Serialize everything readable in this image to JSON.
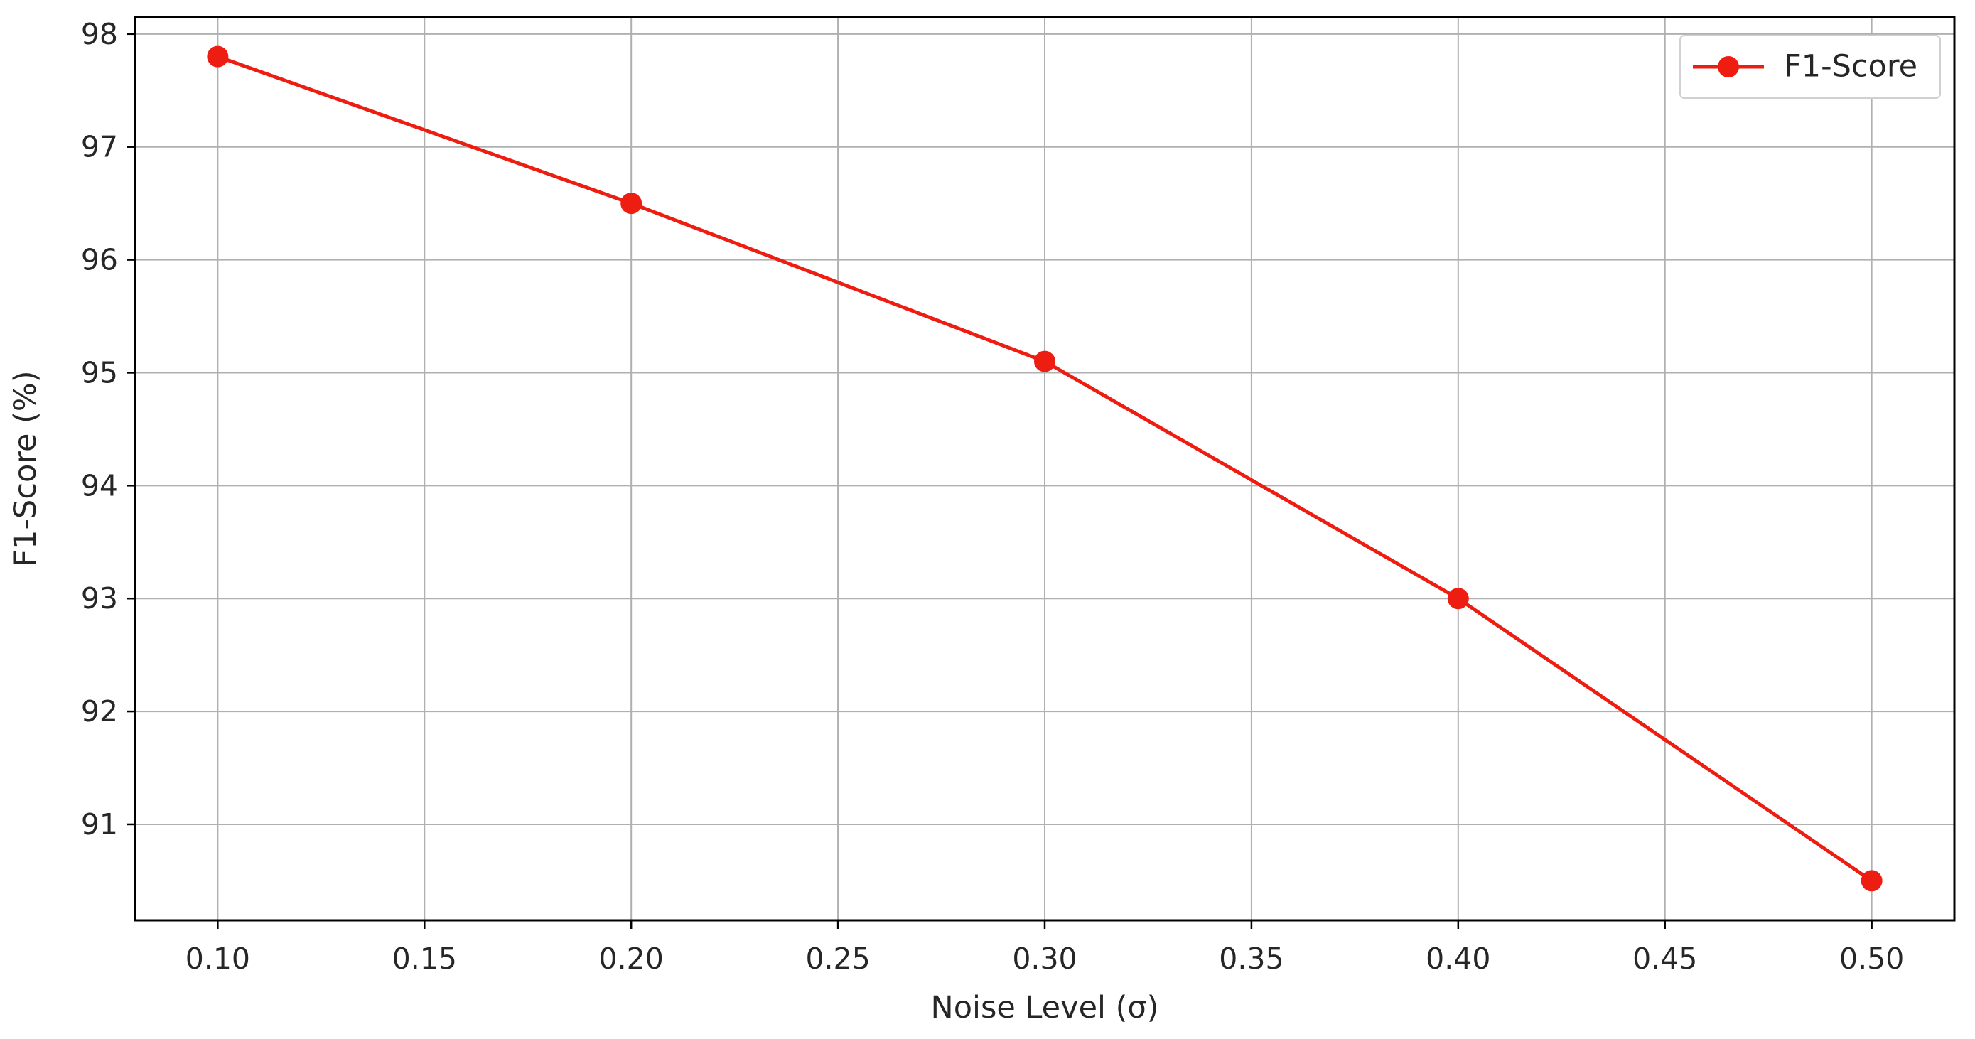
{
  "chart_data": {
    "type": "line",
    "title": "",
    "xlabel": "Noise Level (σ)",
    "ylabel": "F1-Score (%)",
    "x": [
      0.1,
      0.2,
      0.3,
      0.4,
      0.5
    ],
    "series": [
      {
        "name": "F1-Score",
        "values": [
          97.8,
          96.5,
          95.1,
          93.0,
          90.5
        ],
        "color": "#ee1d12",
        "marker": "circle"
      }
    ],
    "xlim": [
      0.08,
      0.52
    ],
    "ylim": [
      90.15,
      98.15
    ],
    "x_ticks": [
      0.1,
      0.15,
      0.2,
      0.25,
      0.3,
      0.35,
      0.4,
      0.45,
      0.5
    ],
    "x_tick_labels": [
      "0.10",
      "0.15",
      "0.20",
      "0.25",
      "0.30",
      "0.35",
      "0.40",
      "0.45",
      "0.50"
    ],
    "y_ticks": [
      91,
      92,
      93,
      94,
      95,
      96,
      97,
      98
    ],
    "y_tick_labels": [
      "91",
      "92",
      "93",
      "94",
      "95",
      "96",
      "97",
      "98"
    ],
    "grid": true,
    "legend_position": "top-right"
  }
}
